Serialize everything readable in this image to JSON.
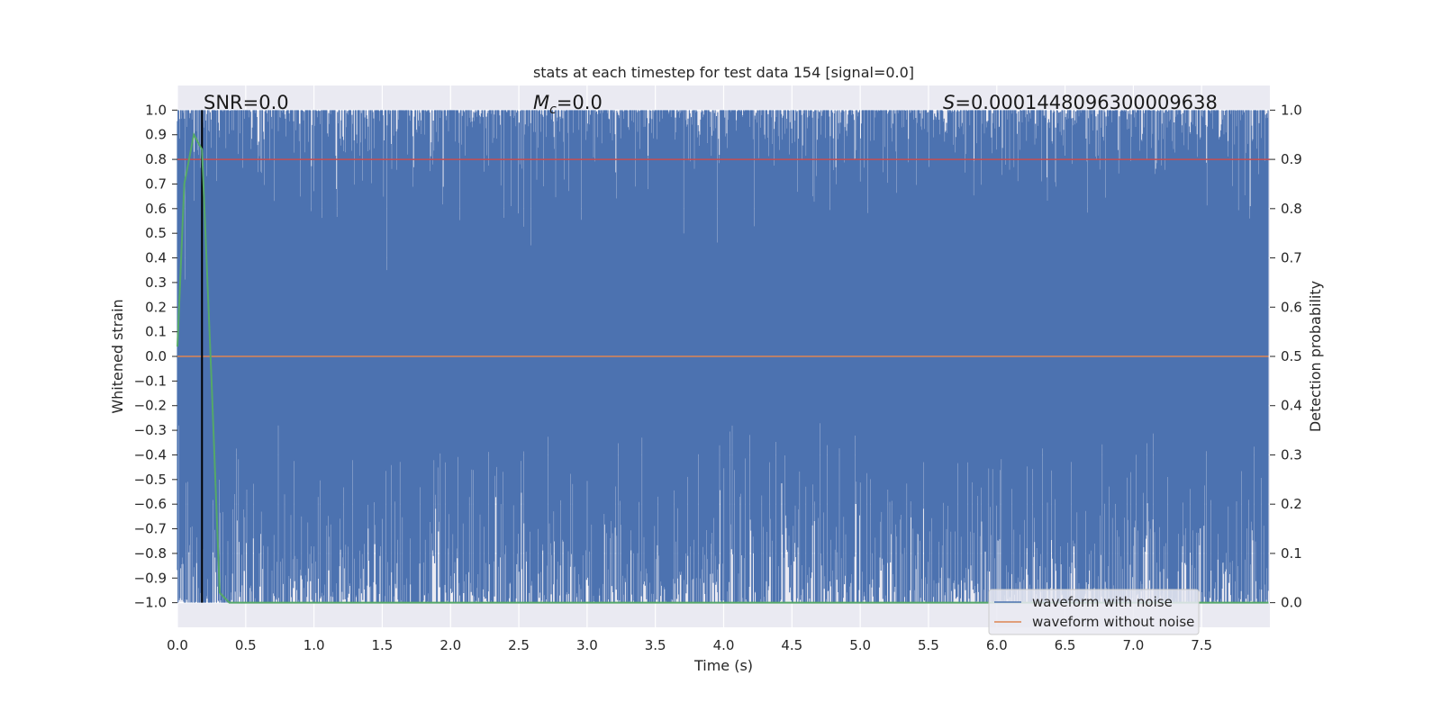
{
  "chart_data": {
    "type": "line",
    "title": "stats at each timestep for test data 154 [signal=0.0]",
    "xlabel": "Time (s)",
    "ylabel_left": "Whitened strain",
    "ylabel_right": "Detection probability",
    "xlim": [
      0.0,
      8.0
    ],
    "ylim_left": [
      -1.1,
      1.1
    ],
    "ylim_right": [
      -0.05,
      1.05
    ],
    "x_ticks": [
      "0.0",
      "0.5",
      "1.0",
      "1.5",
      "2.0",
      "2.5",
      "3.0",
      "3.5",
      "4.0",
      "4.5",
      "5.0",
      "5.5",
      "6.0",
      "6.5",
      "7.0",
      "7.5"
    ],
    "y_left_ticks": [
      "1.0",
      "0.9",
      "0.8",
      "0.7",
      "0.6",
      "0.5",
      "0.4",
      "0.3",
      "0.2",
      "0.1",
      "0.0",
      "−0.1",
      "−0.2",
      "−0.3",
      "−0.4",
      "−0.5",
      "−0.6",
      "−0.7",
      "−0.8",
      "−0.9",
      "−1.0"
    ],
    "y_right_ticks": [
      "1.0",
      "0.9",
      "0.8",
      "0.7",
      "0.6",
      "0.5",
      "0.4",
      "0.3",
      "0.2",
      "0.1",
      "0.0"
    ],
    "grid": true,
    "legend_position": "lower-right",
    "annotations": {
      "snr": "SNR=0.0",
      "mc_symbol": "M",
      "mc_subscript": "c",
      "mc_value": "=0.0",
      "s_symbol": "S",
      "s_value": "=0.0001448096300009638"
    },
    "series": [
      {
        "name": "waveform with noise",
        "color": "#4c72b0",
        "description_range": [
          -1.0,
          1.0
        ],
        "x_range": [
          0.0,
          7.99
        ]
      },
      {
        "name": "waveform without noise",
        "color": "#dd8452",
        "x": [
          0.0,
          7.99
        ],
        "y": [
          0.0,
          0.0
        ]
      },
      {
        "axis": "right",
        "color": "#55a868",
        "x": [
          0.0,
          0.05,
          0.12,
          0.18,
          0.25,
          0.31,
          0.38,
          7.99
        ],
        "y": [
          0.52,
          0.85,
          0.95,
          0.92,
          0.45,
          0.02,
          0.0,
          0.0
        ]
      }
    ],
    "reference_lines": {
      "horizontal_red": {
        "value_right_axis": 0.9,
        "color": "#c44e52"
      },
      "vertical_black": {
        "x": 0.18,
        "color": "#000000"
      }
    }
  }
}
